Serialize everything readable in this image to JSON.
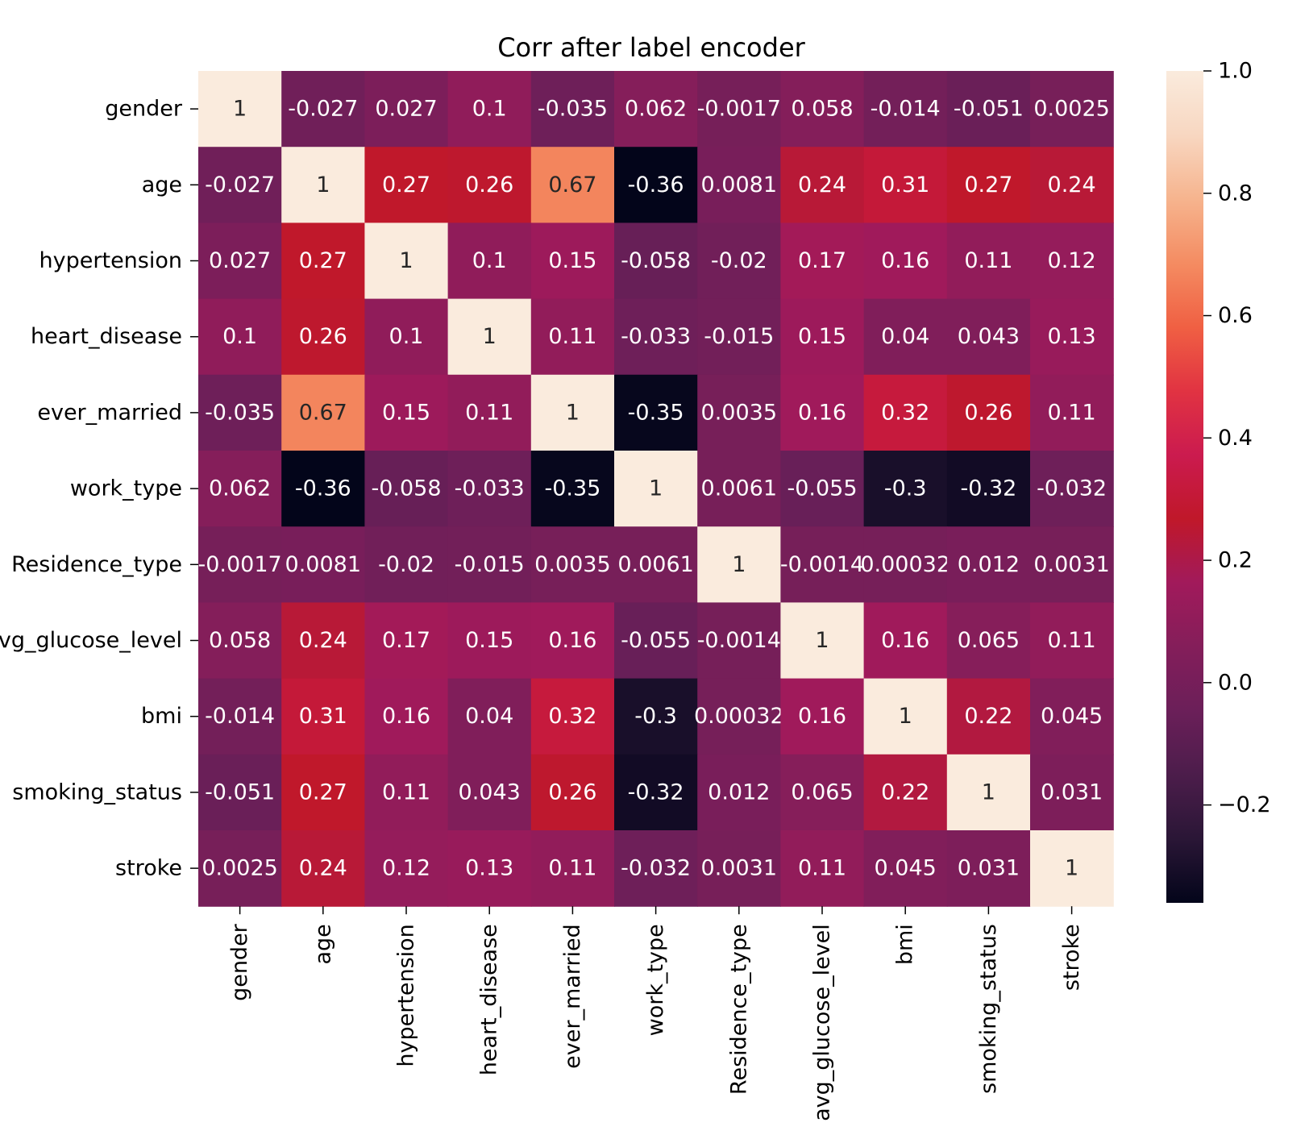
{
  "chart_data": {
    "type": "heatmap",
    "title": "Corr after label encoder",
    "labels": [
      "gender",
      "age",
      "hypertension",
      "heart_disease",
      "ever_married",
      "work_type",
      "Residence_type",
      "avg_glucose_level",
      "bmi",
      "smoking_status",
      "stroke"
    ],
    "annotations": [
      [
        "1",
        "-0.027",
        "0.027",
        "0.1",
        "-0.035",
        "0.062",
        "-0.0017",
        "0.058",
        "-0.014",
        "-0.051",
        "0.0025"
      ],
      [
        "-0.027",
        "1",
        "0.27",
        "0.26",
        "0.67",
        "-0.36",
        "0.0081",
        "0.24",
        "0.31",
        "0.27",
        "0.24"
      ],
      [
        "0.027",
        "0.27",
        "1",
        "0.1",
        "0.15",
        "-0.058",
        "-0.02",
        "0.17",
        "0.16",
        "0.11",
        "0.12"
      ],
      [
        "0.1",
        "0.26",
        "0.1",
        "1",
        "0.11",
        "-0.033",
        "-0.015",
        "0.15",
        "0.04",
        "0.043",
        "0.13"
      ],
      [
        "-0.035",
        "0.67",
        "0.15",
        "0.11",
        "1",
        "-0.35",
        "0.0035",
        "0.16",
        "0.32",
        "0.26",
        "0.11"
      ],
      [
        "0.062",
        "-0.36",
        "-0.058",
        "-0.033",
        "-0.35",
        "1",
        "0.0061",
        "-0.055",
        "-0.3",
        "-0.32",
        "-0.032"
      ],
      [
        "-0.0017",
        "0.0081",
        "-0.02",
        "-0.015",
        "0.0035",
        "0.0061",
        "1",
        "-0.0014",
        "0.00032",
        "0.012",
        "0.0031"
      ],
      [
        "0.058",
        "0.24",
        "0.17",
        "0.15",
        "0.16",
        "-0.055",
        "-0.0014",
        "1",
        "0.16",
        "0.065",
        "0.11"
      ],
      [
        "-0.014",
        "0.31",
        "0.16",
        "0.04",
        "0.32",
        "-0.3",
        "0.00032",
        "0.16",
        "1",
        "0.22",
        "0.045"
      ],
      [
        "-0.051",
        "0.27",
        "0.11",
        "0.043",
        "0.26",
        "-0.32",
        "0.012",
        "0.065",
        "0.22",
        "1",
        "0.031"
      ],
      [
        "0.0025",
        "0.24",
        "0.12",
        "0.13",
        "0.11",
        "-0.032",
        "0.0031",
        "0.11",
        "0.045",
        "0.031",
        "1"
      ]
    ],
    "colorbar": {
      "min": -0.36,
      "max": 1.0,
      "ticks": [
        1.0,
        0.8,
        0.6,
        0.4,
        0.2,
        0.0,
        -0.2
      ],
      "tick_labels": [
        "1.0",
        "0.8",
        "0.6",
        "0.4",
        "0.2",
        "0.0",
        "−0.2"
      ],
      "colormap": "rocket",
      "stops": [
        "#03051a",
        "#2a1636",
        "#4c1d4b",
        "#6b1f59",
        "#841e5a",
        "#a11a5b",
        "#c0182a",
        "#cb1b4f",
        "#e13342",
        "#f06043",
        "#f48c62",
        "#f6b48e",
        "#f8d7c1",
        "#faebdd"
      ]
    }
  }
}
